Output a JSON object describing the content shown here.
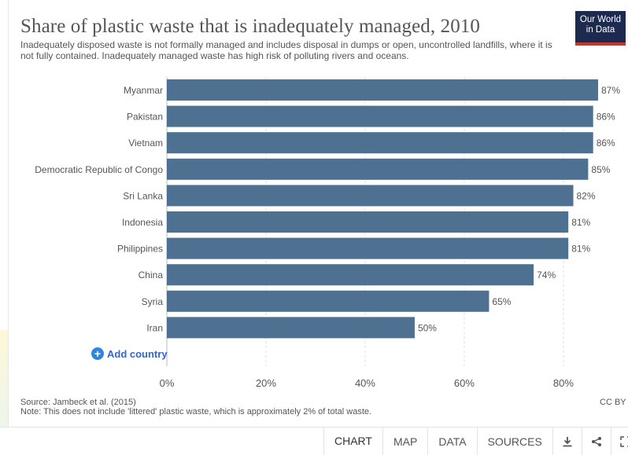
{
  "header": {
    "title": "Share of plastic waste that is inadequately managed, 2010",
    "subtitle": "Inadequately disposed waste is not formally managed and includes disposal in dumps or open, uncontrolled landfills, where it is not fully contained. Inadequately managed waste has high risk of polluting rivers and oceans.",
    "logo_line1": "Our World",
    "logo_line2": "in Data"
  },
  "chart_data": {
    "type": "bar",
    "orientation": "horizontal",
    "categories": [
      "Myanmar",
      "Pakistan",
      "Vietnam",
      "Democratic Republic of Congo",
      "Sri Lanka",
      "Indonesia",
      "Philippines",
      "China",
      "Syria",
      "Iran"
    ],
    "values": [
      87,
      86,
      86,
      85,
      82,
      81,
      81,
      74,
      65,
      50
    ],
    "value_labels": [
      "87%",
      "86%",
      "86%",
      "85%",
      "82%",
      "81%",
      "81%",
      "74%",
      "65%",
      "50%"
    ],
    "xlim": [
      0,
      87
    ],
    "xticks": [
      0,
      20,
      40,
      60,
      80
    ],
    "xtick_labels": [
      "0%",
      "20%",
      "40%",
      "60%",
      "80%"
    ],
    "bar_color": "#4e7191",
    "grid": true
  },
  "controls": {
    "add_country": "Add country"
  },
  "footer": {
    "source": "Source: Jambeck et al. (2015)",
    "note": "Note: This does not include 'littered' plastic waste, which is approximately 2% of total waste.",
    "license": "CC BY",
    "tabs": [
      "CHART",
      "MAP",
      "DATA",
      "SOURCES"
    ],
    "icons": [
      "download-icon",
      "share-icon",
      "fullscreen-icon"
    ]
  }
}
